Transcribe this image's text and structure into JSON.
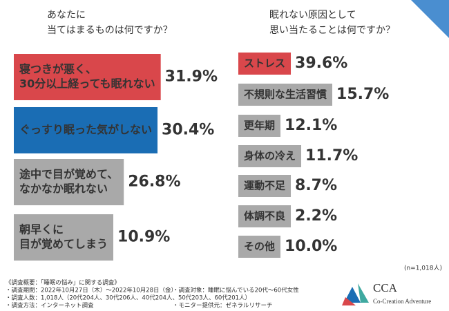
{
  "chart_data": [
    {
      "type": "bar",
      "title": [
        "あなたに",
        "当てはまるものは何ですか？"
      ],
      "categories": [
        [
          "寝つきが悪く、",
          "30分以上経っても眠れない"
        ],
        [
          "ぐっすり眠った気がしない"
        ],
        [
          "途中で目が覚めて、",
          "なかなか眠れない"
        ],
        [
          "朝早くに",
          "目が覚めてしまう"
        ]
      ],
      "values": [
        31.9,
        30.4,
        26.8,
        10.9
      ],
      "value_labels": [
        "31.9%",
        "30.4%",
        "26.8%",
        "10.9%"
      ],
      "colors": [
        "#d9474b",
        "#1a6db4",
        "#a9a9a9",
        "#a9a9a9"
      ],
      "value_label_colors": [
        "#d9474b",
        "#1a6db4",
        "#444444",
        "#444444"
      ]
    },
    {
      "type": "bar",
      "title": [
        "眠れない原因として",
        "思い当たることは何ですか？"
      ],
      "categories": [
        [
          "ストレス"
        ],
        [
          "不規則な生活習慣"
        ],
        [
          "更年期"
        ],
        [
          "身体の冷え"
        ],
        [
          "運動不足"
        ],
        [
          "体調不良"
        ],
        [
          "その他"
        ]
      ],
      "values": [
        39.6,
        15.7,
        12.1,
        11.7,
        8.7,
        2.2,
        10.0
      ],
      "value_labels": [
        "39.6%",
        "15.7%",
        "12.1%",
        "11.7%",
        "8.7%",
        "2.2%",
        "10.0%"
      ],
      "colors": [
        "#d9474b",
        "#a9a9a9",
        "#a9a9a9",
        "#a9a9a9",
        "#a9a9a9",
        "#a9a9a9",
        "#a9a9a9"
      ],
      "value_label_colors": [
        "#d9474b",
        "#444444",
        "#444444",
        "#444444",
        "#444444",
        "#444444",
        "#444444"
      ],
      "note": "(n=1,018人)"
    }
  ],
  "footer": [
    "《調査概要：「睡眠の悩み」に関する調査》",
    "・調査期間：2022年10月27日（木）～2022年10月28日（金）",
    "・調査人数：1,018人（20代204人、30代206人、40代204人、50代203人、60代201人）",
    "・調査方法：インターネット調査",
    "・調査対象：睡眠に悩んでいる20代～60代女性",
    "・モニター提供元：ゼネラルリサーチ"
  ],
  "logo": {
    "name": "CCA",
    "tagline": "Co-Creation Adventure"
  }
}
